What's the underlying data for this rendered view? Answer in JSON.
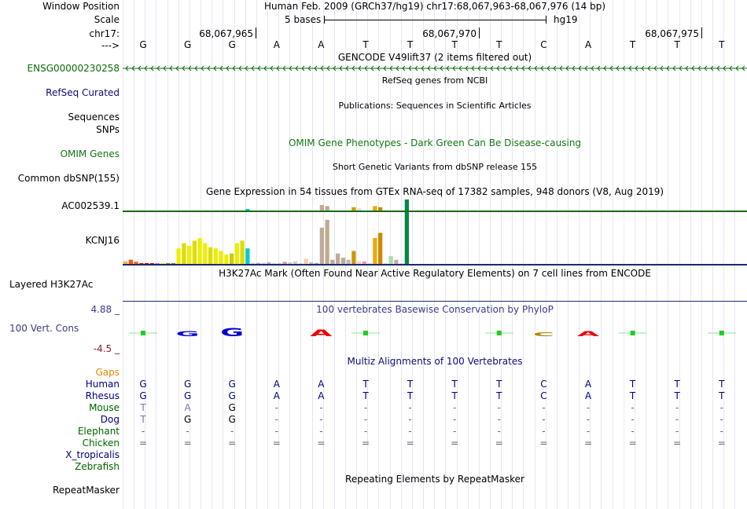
{
  "header": {
    "window_position_label": "Window Position",
    "position_text": "Human Feb. 2009 (GRCh37/hg19)   chr17:68,067,963-68,067,976 (14 bp)",
    "scale_label": "Scale",
    "scale_bases": "5 bases",
    "scale_assembly": "hg19",
    "chrom_label": "chr17:",
    "strand_label": "--->",
    "coords": [
      "68,067,965",
      "68,067,970",
      "68,067,975"
    ]
  },
  "bases": [
    "G",
    "G",
    "G",
    "A",
    "A",
    "T",
    "T",
    "T",
    "T",
    "C",
    "A",
    "T",
    "T",
    "T"
  ],
  "tracks": {
    "gencode_title": "GENCODE V49lift37 (2 items filtered out)",
    "gencode_gene": "ENSG00000230258",
    "refseq_title": "RefSeq genes from NCBI",
    "refseq_label": "RefSeq Curated",
    "pubs_title": "Publications: Sequences in Scientific Articles",
    "sequences_label": "Sequences",
    "snps_label": "SNPs",
    "omim_title": "OMIM Gene Phenotypes - Dark Green Can Be Disease-causing",
    "omim_label": "OMIM Genes",
    "dbsnp_title": "Short Genetic Variants from dbSNP release 155",
    "dbsnp_label": "Common dbSNP(155)",
    "gtex_title": "Gene Expression in 54 tissues from GTEx RNA-seq of 17382 samples, 948 donors (V8, Aug 2019)",
    "gtex_gene1": "AC002539.1",
    "gtex_gene2": "KCNJ16",
    "h3k27_title": "H3K27Ac Mark (Often Found Near Active Regulatory Elements) on 7 cell lines from ENCODE",
    "h3k27_label": "Layered H3K27Ac",
    "phylop_title": "100 vertebrates Basewise Conservation by PhyloP",
    "phylop_max": "4.88 _",
    "phylop_label": "100 Vert. Cons",
    "phylop_min": "-4.5 _",
    "multiz_title": "Multiz Alignments of 100 Vertebrates",
    "gaps_label": "Gaps",
    "rmsk_title": "Repeating Elements by RepeatMasker",
    "rmsk_label": "RepeatMasker"
  },
  "gtex_values_kcnj16": [
    0.05,
    0.08,
    0.04,
    0,
    0,
    0,
    0,
    0,
    0,
    0,
    0.3,
    0.4,
    0.35,
    0.45,
    0.5,
    0.4,
    0.32,
    0.3,
    0.25,
    0.18,
    0.2,
    0.4,
    0.45,
    0.3,
    0.02,
    0.02,
    0.02,
    0.03,
    0.02,
    0.02,
    0.04,
    0.03,
    0.05,
    0.02,
    0.1,
    0.03,
    0.02,
    0.7,
    0.85,
    0.08,
    0.2,
    0.12,
    0.08,
    0.25,
    0.05,
    0.05,
    0.01,
    0.5,
    0.6,
    0.01,
    0.15,
    0.08,
    0.01,
    1.0
  ],
  "gtex_colors": [
    "#ffaa55",
    "#ff5500",
    "#ff5500",
    "#ff0000",
    "#cc0000",
    "#ee0000",
    "#cc66ff",
    "#eeee00",
    "#8b7355",
    "#8b7355",
    "#eeee00",
    "#dddd00",
    "#eeee00",
    "#dddd00",
    "#eeee00",
    "#eeee00",
    "#dddd00",
    "#eeee00",
    "#eeee00",
    "#eeee00",
    "#cccc00",
    "#eeee00",
    "#dddd00",
    "#00cccc",
    "#cccccc",
    "#aaaaaa",
    "#cccccc",
    "#aaaacc",
    "#dddddd",
    "#cccccc",
    "#cc9999",
    "#cccccc",
    "#cccccc",
    "#dddddd",
    "#ffccaa",
    "#bbbbbb",
    "#aaaaaa",
    "#c0aa99",
    "#bfaa8f",
    "#c0aa99",
    "#c0aa99",
    "#c0aa99",
    "#bbbbbb",
    "#cc9900",
    "#dddddd",
    "#ff9999",
    "#dddddd",
    "#eeaa00",
    "#cc8800",
    "#dddddd",
    "#aaddaa",
    "#ccaaaa",
    "#dddddd",
    "#008844"
  ],
  "gtex_values_ac": [
    0,
    0,
    0,
    0,
    0,
    0,
    0,
    0,
    0,
    0,
    0,
    0,
    0,
    0,
    0,
    0,
    0,
    0,
    0,
    0,
    0,
    0,
    0,
    0.15,
    0,
    0,
    0,
    0,
    0,
    0,
    0,
    0,
    0,
    0,
    0,
    0,
    0,
    0.5,
    0.4,
    0,
    0,
    0,
    0,
    0.3,
    0.2,
    0,
    0,
    0.4,
    0.3,
    0,
    0,
    0,
    0,
    1.0
  ],
  "multiz": [
    {
      "species": "Human",
      "color": "#000080",
      "seq": [
        "G",
        "G",
        "G",
        "A",
        "A",
        "T",
        "T",
        "T",
        "T",
        "C",
        "A",
        "T",
        "T",
        "T"
      ]
    },
    {
      "species": "Rhesus",
      "color": "#000080",
      "seq": [
        "G",
        "G",
        "G",
        "A",
        "A",
        "T",
        "T",
        "T",
        "T",
        "C",
        "A",
        "T",
        "T",
        "T"
      ]
    },
    {
      "species": "Mouse",
      "color": "#006400",
      "seq": [
        "T",
        "A",
        "G",
        "-",
        "-",
        "-",
        "-",
        "-",
        "-",
        "-",
        "-",
        "-",
        "-",
        "-"
      ]
    },
    {
      "species": "Dog",
      "color": "#000080",
      "seq": [
        "T",
        "G",
        "G",
        "-",
        "-",
        "-",
        "-",
        "-",
        "-",
        "-",
        "-",
        "-",
        "-",
        "-"
      ]
    },
    {
      "species": "Elephant",
      "color": "#006400",
      "seq": [
        "-",
        "-",
        "-",
        "-",
        "-",
        "-",
        "-",
        "-",
        "-",
        "-",
        "-",
        "-",
        "-",
        "-"
      ]
    },
    {
      "species": "Chicken",
      "color": "#006400",
      "seq": [
        "=",
        "=",
        "=",
        "=",
        "=",
        "=",
        "=",
        "=",
        "=",
        "=",
        "=",
        "=",
        "=",
        "="
      ]
    },
    {
      "species": "X_tropicalis",
      "color": "#000080",
      "seq": []
    },
    {
      "species": "Zebrafish",
      "color": "#006400",
      "seq": []
    }
  ],
  "colors": {
    "gencode": "#0c6c0c",
    "refseq": "#0c0c78",
    "omim": "#137813",
    "phylop": "#3b3b8b",
    "phylop_min": "#8b1a1a",
    "gaps": "#e88a00",
    "gtex_line": "#196b19",
    "h3k27_line": "#1b2b6b"
  }
}
